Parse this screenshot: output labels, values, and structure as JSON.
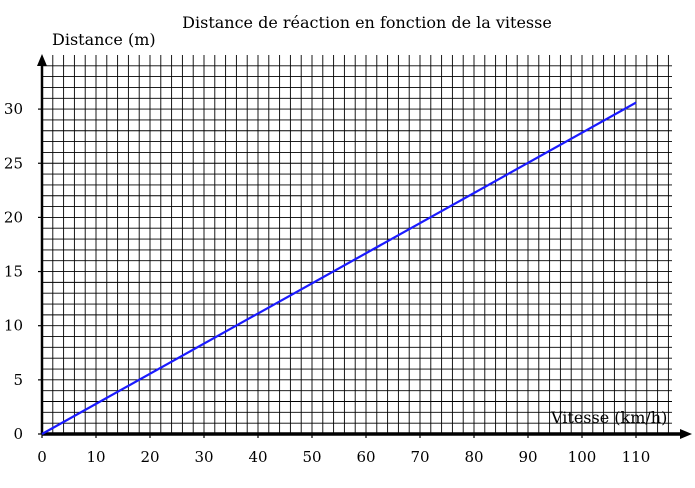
{
  "chart_data": {
    "type": "line",
    "title": "Distance de réaction en fonction de la vitesse",
    "xlabel": "Vitesse (km/h)",
    "ylabel": "Distance (m)",
    "xlim": [
      0,
      119
    ],
    "ylim": [
      0,
      35
    ],
    "x_ticks": [
      0,
      10,
      20,
      30,
      40,
      50,
      60,
      70,
      80,
      90,
      100,
      110
    ],
    "y_ticks": [
      0,
      5,
      10,
      15,
      20,
      25,
      30
    ],
    "x_tick_labels": [
      "0",
      "10",
      "20",
      "30",
      "40",
      "50",
      "60",
      "70",
      "80",
      "90",
      "100",
      "110"
    ],
    "y_tick_labels": [
      "0",
      "5",
      "10",
      "15",
      "20",
      "25",
      "30"
    ],
    "grid": true,
    "series": [
      {
        "color": "#1a1aff",
        "x": [
          0,
          110
        ],
        "y": [
          0,
          30.6
        ]
      }
    ]
  }
}
